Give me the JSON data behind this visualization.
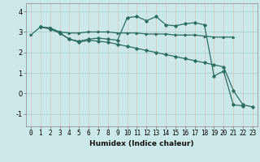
{
  "xlabel": "Humidex (Indice chaleur)",
  "ylabel": "",
  "bg_color": "#cce8e8",
  "grid_color": "#aacccc",
  "line_color": "#2e6b60",
  "xlim": [
    -0.5,
    23.5
  ],
  "ylim": [
    -1.6,
    4.4
  ],
  "yticks": [
    -1,
    0,
    1,
    2,
    3,
    4
  ],
  "xticks": [
    0,
    1,
    2,
    3,
    4,
    5,
    6,
    7,
    8,
    9,
    10,
    11,
    12,
    13,
    14,
    15,
    16,
    17,
    18,
    19,
    20,
    21,
    22,
    23
  ],
  "line1_x": [
    0,
    1,
    2,
    3,
    4,
    5,
    6,
    7,
    8,
    9,
    10,
    11,
    12,
    13,
    14,
    15,
    16,
    17,
    18,
    19,
    20,
    21
  ],
  "line1_y": [
    2.85,
    3.25,
    3.2,
    3.0,
    2.95,
    2.95,
    3.0,
    3.0,
    3.0,
    2.95,
    2.95,
    2.95,
    2.9,
    2.9,
    2.9,
    2.85,
    2.85,
    2.85,
    2.8,
    2.75,
    2.75,
    2.75
  ],
  "line2_x": [
    1,
    2,
    3,
    4,
    5,
    6,
    7,
    8,
    9,
    10,
    11,
    12,
    13,
    14,
    15,
    16,
    17,
    18,
    19,
    20,
    21,
    22
  ],
  "line2_y": [
    3.25,
    3.15,
    2.95,
    2.65,
    2.55,
    2.65,
    2.7,
    2.65,
    2.6,
    3.7,
    3.75,
    3.55,
    3.75,
    3.35,
    3.3,
    3.4,
    3.45,
    3.35,
    0.85,
    1.1,
    -0.55,
    -0.6
  ],
  "line3_x": [
    1,
    2,
    3,
    4,
    5,
    6,
    7,
    8,
    9,
    10,
    11,
    12,
    13,
    14,
    15,
    16,
    17,
    18,
    19,
    20,
    21,
    22,
    23
  ],
  "line3_y": [
    3.25,
    3.15,
    2.95,
    2.65,
    2.5,
    2.6,
    2.55,
    2.5,
    2.4,
    2.3,
    2.2,
    2.1,
    2.0,
    1.9,
    1.8,
    1.7,
    1.6,
    1.5,
    1.4,
    1.3,
    0.15,
    -0.55,
    -0.65
  ],
  "tick_fontsize": 5.5,
  "xlabel_fontsize": 6.5
}
